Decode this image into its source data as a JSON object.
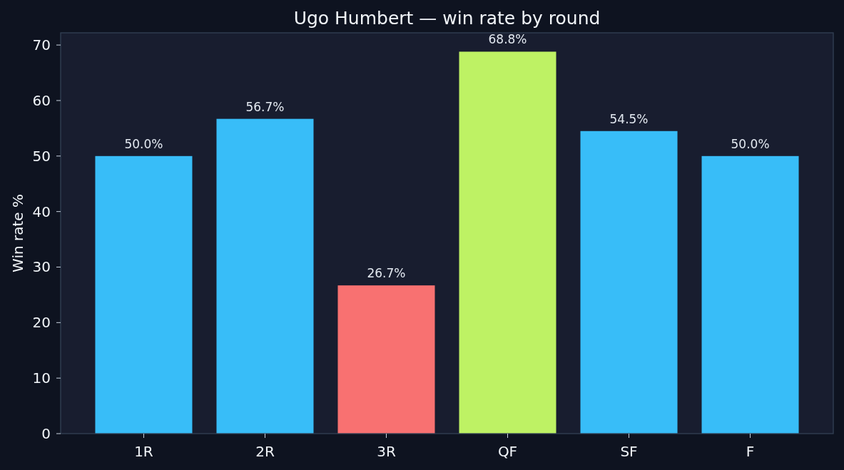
{
  "chart_data": {
    "type": "bar",
    "title": "Ugo Humbert — win rate by round",
    "ylabel": "Win rate %",
    "categories": [
      "1R",
      "2R",
      "3R",
      "QF",
      "SF",
      "F"
    ],
    "values": [
      50.0,
      56.7,
      26.7,
      68.8,
      54.5,
      50.0
    ],
    "colors": [
      "#38bdf8",
      "#38bdf8",
      "#f87171",
      "#bef264",
      "#38bdf8",
      "#38bdf8"
    ],
    "value_labels": [
      "50.0%",
      "56.7%",
      "26.7%",
      "68.8%",
      "54.5%",
      "50.0%"
    ],
    "ylim": [
      0,
      72.2
    ],
    "yticks": [
      0,
      10,
      20,
      30,
      40,
      50,
      60,
      70
    ]
  }
}
